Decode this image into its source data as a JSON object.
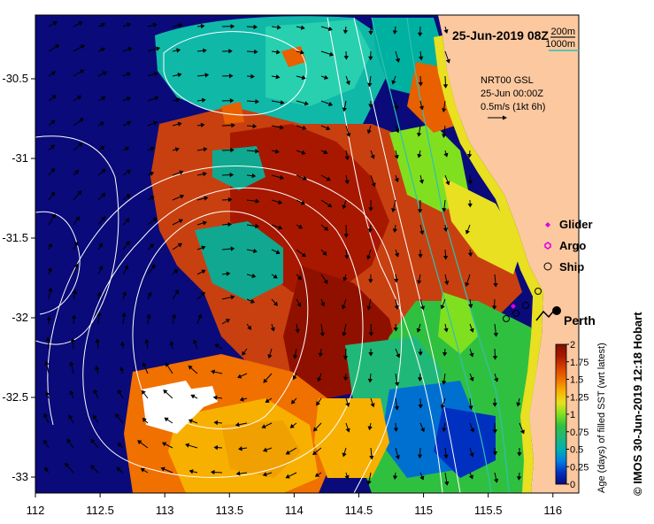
{
  "map": {
    "timestamp": "25-Jun-2019 08Z",
    "depth_legend": {
      "contour_a": "200m",
      "contour_b": "1000m",
      "color_a": "#1a1a1a",
      "color_b": "#30c0b0"
    },
    "current_info": {
      "line1": "NRT00 GSL",
      "line2": "25-Jun 00:00Z",
      "line3": "0.5m/s (1kt 6h)"
    },
    "markers_legend": [
      {
        "label": "Glider",
        "symbol": "diamond",
        "color": "#e000e0"
      },
      {
        "label": "Argo",
        "symbol": "hexagon",
        "color": "#e000e0"
      },
      {
        "label": "Ship",
        "symbol": "circle",
        "color": "#000000"
      }
    ],
    "city": {
      "name": "Perth",
      "lon": 115.86,
      "lat": -31.95
    },
    "x_axis": {
      "ticks": [
        "112",
        "112.5",
        "113",
        "113.5",
        "114",
        "114.5",
        "115",
        "115.5",
        "116"
      ],
      "range": [
        112,
        116.2
      ]
    },
    "y_axis": {
      "ticks": [
        "-30.5",
        "-31",
        "-31.5",
        "-32",
        "-32.5",
        "-33"
      ],
      "range": [
        -33.1,
        -30.1
      ]
    },
    "colorbar": {
      "label": "Age (days) of filled SST (wrt latest)",
      "ticks": [
        "0",
        "0.25",
        "0.5",
        "0.75",
        "1",
        "1.25",
        "1.5",
        "1.75",
        "2"
      ],
      "range": [
        0,
        2
      ],
      "colors": [
        "#0a0a7a",
        "#0030c0",
        "#0080e0",
        "#00b0b0",
        "#20b878",
        "#30c040",
        "#80e020",
        "#e8e020",
        "#f8b000",
        "#f07000",
        "#d84000",
        "#a81800",
        "#801000"
      ]
    },
    "colors": {
      "land": "#fcc8a0",
      "ocean_deep": "#0a0a7a",
      "contour": "#ffffff"
    },
    "credit": "© IMOS 30-Jun-2019 12:18 Hobart"
  }
}
